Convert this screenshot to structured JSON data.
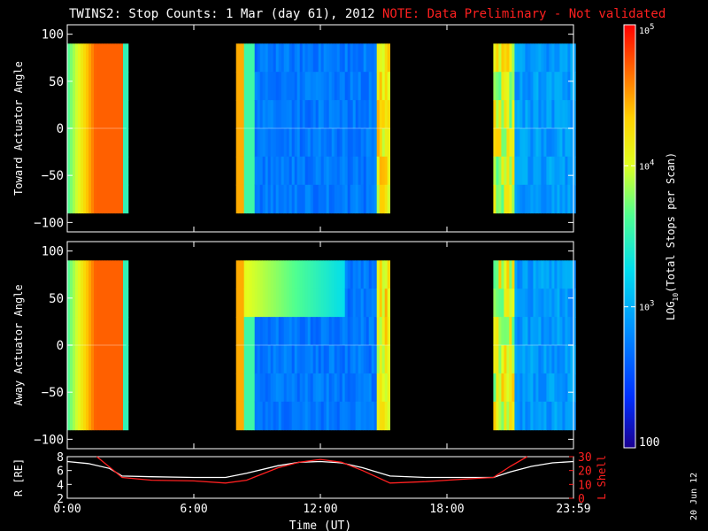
{
  "title_main": "TWINS2: Stop Counts:  1 Mar (day  61), 2012",
  "title_note": "NOTE: Data Preliminary - Not validated",
  "note_color": "#ff2020",
  "date_stamp": "20 Jun 12",
  "chart_data": [
    {
      "type": "heatmap",
      "ylabel": "Toward Actuator Angle",
      "ylim": [
        -110,
        110
      ],
      "yticks": [
        100,
        50,
        0,
        -50,
        -100
      ],
      "angle_range": [
        -90,
        90
      ],
      "xlim_hours": [
        0,
        24
      ],
      "segments": [
        {
          "start_h": 0.0,
          "end_h": 2.8,
          "level": "high"
        },
        {
          "start_h": 8.0,
          "end_h": 15.3,
          "level": "low"
        },
        {
          "start_h": 20.2,
          "end_h": 24.0,
          "level": "mid"
        }
      ]
    },
    {
      "type": "heatmap",
      "ylabel": "Away Actuator Angle",
      "ylim": [
        -110,
        110
      ],
      "yticks": [
        100,
        50,
        0,
        -50,
        -100
      ],
      "angle_range": [
        -90,
        90
      ],
      "xlim_hours": [
        0,
        24
      ],
      "segments": [
        {
          "start_h": 0.0,
          "end_h": 2.8,
          "level": "high"
        },
        {
          "start_h": 8.0,
          "end_h": 15.3,
          "level": "low"
        },
        {
          "start_h": 20.2,
          "end_h": 24.0,
          "level": "mid"
        }
      ]
    },
    {
      "type": "line",
      "ylabel": "R [RE]",
      "ylabel_right": "L Shell",
      "ylim": [
        2,
        8
      ],
      "yticks": [
        2,
        4,
        6,
        8
      ],
      "ylim_right": [
        0,
        30
      ],
      "yticks_right": [
        0,
        10,
        20,
        30
      ],
      "xlim_hours": [
        0,
        24
      ],
      "xticks": [
        "0:00",
        "6:00",
        "12:00",
        "18:00",
        "23:59"
      ],
      "xlabel": "Time (UT)",
      "series": [
        {
          "color": "#ffffff",
          "x": [
            0,
            1,
            2,
            2.6,
            4,
            6,
            7.5,
            8.5,
            10,
            11,
            12,
            13,
            14,
            15.3,
            17,
            19,
            20.2,
            21,
            22,
            23,
            24
          ],
          "y": [
            7.3,
            7.0,
            6.3,
            5.2,
            5.1,
            5.0,
            5.0,
            5.6,
            6.7,
            7.2,
            7.3,
            7.1,
            6.4,
            5.2,
            5.0,
            5.0,
            5.0,
            5.8,
            6.6,
            7.1,
            7.3
          ]
        },
        {
          "color": "#ff2020",
          "axis": "right",
          "x": [
            1.4,
            2.6,
            4,
            6,
            7.5,
            8.5,
            10,
            11,
            12,
            13,
            14,
            15.3,
            17,
            19,
            20.2,
            21,
            21.8
          ],
          "y": [
            30,
            15,
            13,
            12.5,
            11,
            13,
            22,
            26,
            28,
            26,
            20,
            11,
            12,
            14,
            15,
            23,
            30
          ]
        }
      ]
    }
  ],
  "colorbar": {
    "label": "LOG10(Total Stops per Scan)",
    "label_pre": "LOG",
    "label_sub": "10",
    "label_post": "(Total Stops per Scan)",
    "ticks": [
      {
        "text": "10",
        "sup": "5"
      },
      {
        "text": "10",
        "sup": "4"
      },
      {
        "text": "10",
        "sup": "3"
      },
      {
        "text": "100",
        "sup": ""
      }
    ],
    "log_range": [
      2,
      5
    ]
  }
}
